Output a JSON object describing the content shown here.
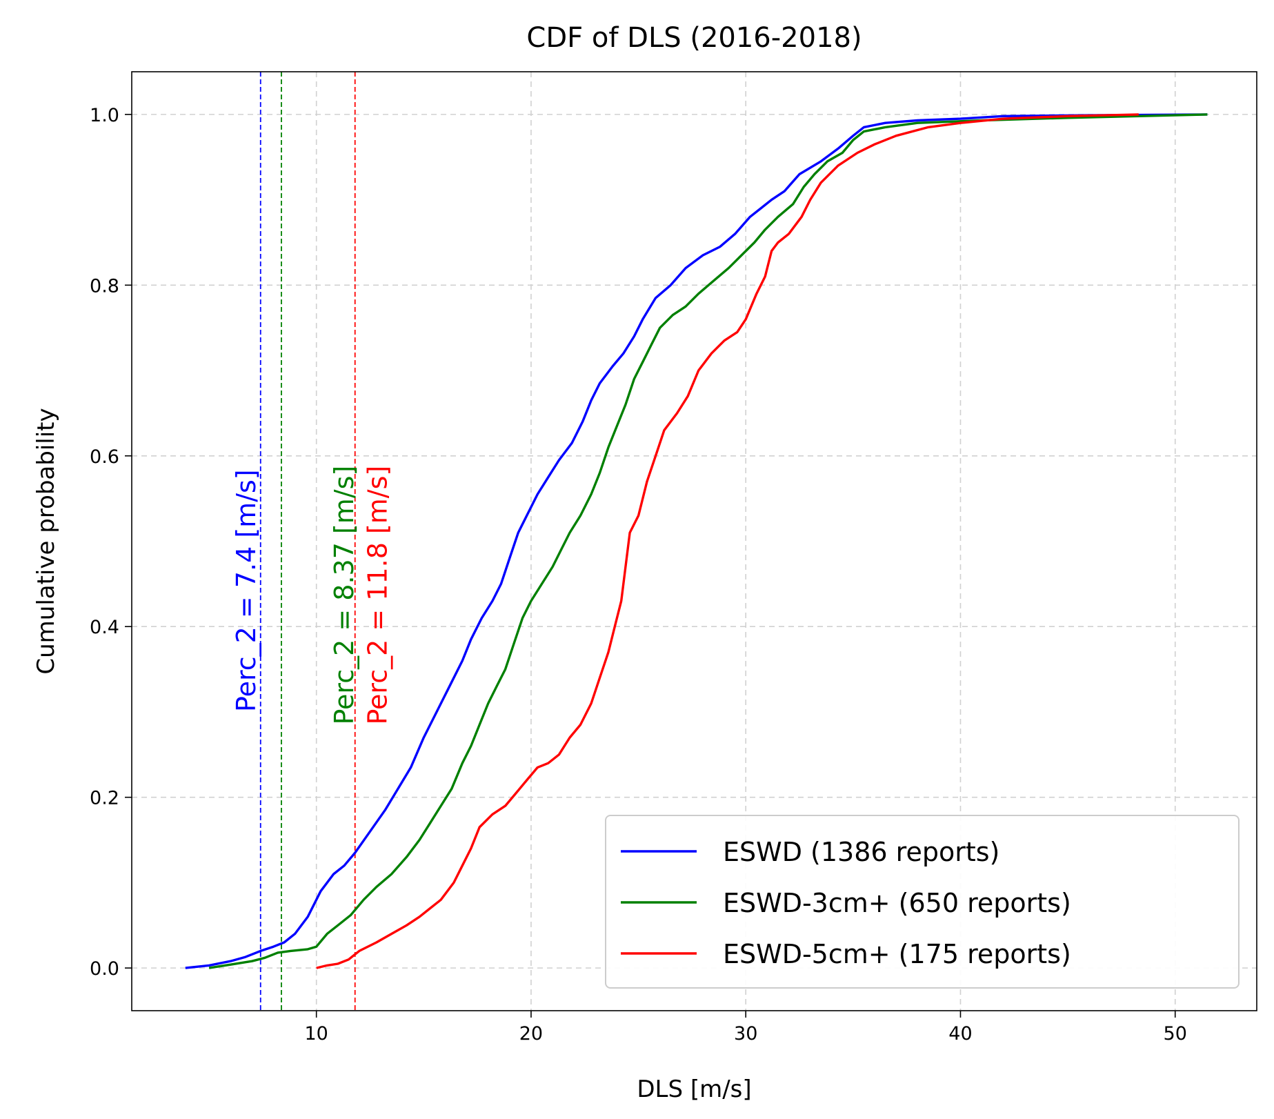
{
  "chart_data": {
    "type": "line",
    "title": "CDF of DLS (2016-2018)",
    "xlabel": "DLS [m/s]",
    "ylabel": "Cumulative probability",
    "xlim": [
      1.4,
      53.8
    ],
    "ylim": [
      -0.05,
      1.05
    ],
    "xticks": [
      10,
      20,
      30,
      40,
      50
    ],
    "yticks": [
      0.0,
      0.2,
      0.4,
      0.6,
      0.8,
      1.0
    ],
    "xtick_labels": [
      "10",
      "20",
      "30",
      "40",
      "50"
    ],
    "ytick_labels": [
      "0.0",
      "0.2",
      "0.4",
      "0.6",
      "0.8",
      "1.0"
    ],
    "grid": true,
    "legend_position": "lower-right",
    "series": [
      {
        "name": "ESWD (1386 reports)",
        "color": "#0000ff",
        "points": [
          [
            3.9,
            0.0
          ],
          [
            5.0,
            0.003
          ],
          [
            6.0,
            0.008
          ],
          [
            6.7,
            0.013
          ],
          [
            7.4,
            0.02
          ],
          [
            8.0,
            0.025
          ],
          [
            8.5,
            0.03
          ],
          [
            9.0,
            0.04
          ],
          [
            9.6,
            0.06
          ],
          [
            10.2,
            0.09
          ],
          [
            10.8,
            0.11
          ],
          [
            11.3,
            0.12
          ],
          [
            11.8,
            0.135
          ],
          [
            12.5,
            0.16
          ],
          [
            13.2,
            0.185
          ],
          [
            13.8,
            0.21
          ],
          [
            14.4,
            0.235
          ],
          [
            15.0,
            0.27
          ],
          [
            15.6,
            0.3
          ],
          [
            16.2,
            0.33
          ],
          [
            16.8,
            0.36
          ],
          [
            17.2,
            0.385
          ],
          [
            17.7,
            0.41
          ],
          [
            18.2,
            0.43
          ],
          [
            18.6,
            0.45
          ],
          [
            19.0,
            0.48
          ],
          [
            19.4,
            0.51
          ],
          [
            19.8,
            0.53
          ],
          [
            20.3,
            0.555
          ],
          [
            20.8,
            0.575
          ],
          [
            21.3,
            0.595
          ],
          [
            21.9,
            0.615
          ],
          [
            22.4,
            0.64
          ],
          [
            22.8,
            0.665
          ],
          [
            23.2,
            0.685
          ],
          [
            23.8,
            0.705
          ],
          [
            24.3,
            0.72
          ],
          [
            24.8,
            0.74
          ],
          [
            25.2,
            0.76
          ],
          [
            25.8,
            0.785
          ],
          [
            26.5,
            0.8
          ],
          [
            27.2,
            0.82
          ],
          [
            28.0,
            0.835
          ],
          [
            28.8,
            0.845
          ],
          [
            29.5,
            0.86
          ],
          [
            30.2,
            0.88
          ],
          [
            30.7,
            0.89
          ],
          [
            31.2,
            0.9
          ],
          [
            31.8,
            0.91
          ],
          [
            32.5,
            0.93
          ],
          [
            33.5,
            0.945
          ],
          [
            34.3,
            0.96
          ],
          [
            35.0,
            0.975
          ],
          [
            35.5,
            0.985
          ],
          [
            36.5,
            0.99
          ],
          [
            38.0,
            0.993
          ],
          [
            40.0,
            0.995
          ],
          [
            42.0,
            0.998
          ],
          [
            46.0,
            0.999
          ],
          [
            51.5,
            1.0
          ]
        ]
      },
      {
        "name": "ESWD-3cm+ (650 reports)",
        "color": "#008000",
        "points": [
          [
            5.0,
            0.0
          ],
          [
            6.0,
            0.004
          ],
          [
            7.0,
            0.008
          ],
          [
            7.6,
            0.012
          ],
          [
            8.2,
            0.018
          ],
          [
            8.8,
            0.02
          ],
          [
            9.6,
            0.022
          ],
          [
            10.0,
            0.025
          ],
          [
            10.5,
            0.04
          ],
          [
            11.0,
            0.05
          ],
          [
            11.6,
            0.062
          ],
          [
            12.2,
            0.08
          ],
          [
            12.8,
            0.095
          ],
          [
            13.5,
            0.11
          ],
          [
            14.2,
            0.13
          ],
          [
            14.8,
            0.15
          ],
          [
            15.3,
            0.17
          ],
          [
            15.8,
            0.19
          ],
          [
            16.3,
            0.21
          ],
          [
            16.8,
            0.24
          ],
          [
            17.2,
            0.26
          ],
          [
            17.6,
            0.285
          ],
          [
            18.0,
            0.31
          ],
          [
            18.4,
            0.33
          ],
          [
            18.8,
            0.35
          ],
          [
            19.2,
            0.38
          ],
          [
            19.6,
            0.41
          ],
          [
            20.0,
            0.43
          ],
          [
            20.5,
            0.45
          ],
          [
            21.0,
            0.47
          ],
          [
            21.4,
            0.49
          ],
          [
            21.8,
            0.51
          ],
          [
            22.3,
            0.53
          ],
          [
            22.8,
            0.555
          ],
          [
            23.2,
            0.58
          ],
          [
            23.6,
            0.61
          ],
          [
            24.0,
            0.635
          ],
          [
            24.4,
            0.66
          ],
          [
            24.8,
            0.69
          ],
          [
            25.2,
            0.71
          ],
          [
            25.6,
            0.73
          ],
          [
            26.0,
            0.75
          ],
          [
            26.6,
            0.765
          ],
          [
            27.2,
            0.775
          ],
          [
            27.8,
            0.79
          ],
          [
            28.5,
            0.805
          ],
          [
            29.2,
            0.82
          ],
          [
            29.8,
            0.835
          ],
          [
            30.4,
            0.85
          ],
          [
            30.9,
            0.865
          ],
          [
            31.5,
            0.88
          ],
          [
            32.2,
            0.895
          ],
          [
            32.7,
            0.915
          ],
          [
            33.2,
            0.93
          ],
          [
            33.8,
            0.945
          ],
          [
            34.5,
            0.955
          ],
          [
            35.0,
            0.97
          ],
          [
            35.5,
            0.98
          ],
          [
            36.5,
            0.985
          ],
          [
            38.0,
            0.99
          ],
          [
            41.0,
            0.993
          ],
          [
            45.0,
            0.996
          ],
          [
            51.5,
            1.0
          ]
        ]
      },
      {
        "name": "ESWD-5cm+ (175 reports)",
        "color": "#ff0000",
        "points": [
          [
            10.0,
            0.0
          ],
          [
            10.5,
            0.003
          ],
          [
            11.0,
            0.005
          ],
          [
            11.5,
            0.01
          ],
          [
            12.0,
            0.02
          ],
          [
            12.8,
            0.03
          ],
          [
            13.5,
            0.04
          ],
          [
            14.2,
            0.05
          ],
          [
            14.8,
            0.06
          ],
          [
            15.3,
            0.07
          ],
          [
            15.8,
            0.08
          ],
          [
            16.4,
            0.1
          ],
          [
            16.8,
            0.12
          ],
          [
            17.2,
            0.14
          ],
          [
            17.6,
            0.165
          ],
          [
            18.2,
            0.18
          ],
          [
            18.8,
            0.19
          ],
          [
            19.3,
            0.205
          ],
          [
            19.8,
            0.22
          ],
          [
            20.3,
            0.235
          ],
          [
            20.8,
            0.24
          ],
          [
            21.3,
            0.25
          ],
          [
            21.8,
            0.27
          ],
          [
            22.3,
            0.285
          ],
          [
            22.8,
            0.31
          ],
          [
            23.2,
            0.34
          ],
          [
            23.6,
            0.37
          ],
          [
            23.9,
            0.4
          ],
          [
            24.2,
            0.43
          ],
          [
            24.4,
            0.47
          ],
          [
            24.6,
            0.51
          ],
          [
            25.0,
            0.53
          ],
          [
            25.4,
            0.57
          ],
          [
            25.8,
            0.6
          ],
          [
            26.2,
            0.63
          ],
          [
            26.8,
            0.65
          ],
          [
            27.3,
            0.67
          ],
          [
            27.8,
            0.7
          ],
          [
            28.4,
            0.72
          ],
          [
            29.0,
            0.735
          ],
          [
            29.6,
            0.745
          ],
          [
            30.0,
            0.76
          ],
          [
            30.5,
            0.79
          ],
          [
            30.9,
            0.81
          ],
          [
            31.2,
            0.84
          ],
          [
            31.5,
            0.85
          ],
          [
            32.0,
            0.86
          ],
          [
            32.6,
            0.88
          ],
          [
            33.0,
            0.9
          ],
          [
            33.5,
            0.92
          ],
          [
            34.3,
            0.94
          ],
          [
            35.2,
            0.955
          ],
          [
            36.0,
            0.965
          ],
          [
            37.0,
            0.975
          ],
          [
            38.5,
            0.985
          ],
          [
            40.0,
            0.99
          ],
          [
            42.0,
            0.995
          ],
          [
            45.0,
            0.998
          ],
          [
            48.3,
            1.0
          ]
        ]
      }
    ],
    "vlines": [
      {
        "x": 7.4,
        "color": "#0000ff",
        "label": "Perc_2 = 7.4 [m/s]"
      },
      {
        "x": 8.37,
        "color": "#008000",
        "label": "Perc_2 = 8.37 [m/s]"
      },
      {
        "x": 11.8,
        "color": "#ff0000",
        "label": "Perc_2 = 11.8 [m/s]"
      }
    ]
  }
}
